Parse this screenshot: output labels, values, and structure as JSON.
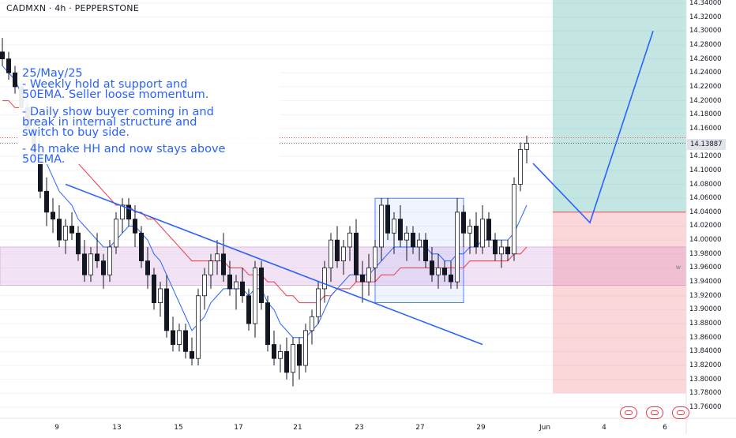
{
  "header": {
    "symbol_line": "CADMXN · 4h · PEPPERSTONE"
  },
  "annotation": {
    "lines": [
      "25/May/25",
      "- Weekly hold at support and",
      "50EMA. Seller loose momentum.",
      "- Daily show buyer coming in and",
      "break in internal structure and",
      "switch to buy side.",
      "- 4h make HH and now stays above",
      "50EMA."
    ]
  },
  "chart_data": {
    "type": "candlestick",
    "title": "CADMXN · 4h · PEPPERSTONE",
    "y_axis": {
      "ylim": [
        13.75,
        14.345
      ],
      "ticks": [
        14.34,
        14.32,
        14.3,
        14.28,
        14.26,
        14.24,
        14.22,
        14.2,
        14.18,
        14.16,
        14.14,
        14.12,
        14.1,
        14.08,
        14.06,
        14.04,
        14.02,
        14.0,
        13.98,
        13.96,
        13.94,
        13.92,
        13.9,
        13.88,
        13.86,
        13.84,
        13.82,
        13.8,
        13.78,
        13.76
      ],
      "tick_labels": [
        "14.34000",
        "14.32000",
        "14.30000",
        "14.28000",
        "14.26000",
        "14.24000",
        "14.22000",
        "14.20000",
        "14.18000",
        "14.16000",
        "14.14000",
        "14.12000",
        "14.10000",
        "14.08000",
        "14.06000",
        "14.04000",
        "14.02000",
        "14.00000",
        "13.98000",
        "13.96000",
        "13.94000",
        "13.92000",
        "13.90000",
        "13.88000",
        "13.86000",
        "13.84000",
        "13.82000",
        "13.80000",
        "13.78000",
        "13.76000"
      ],
      "current_price": 14.13887,
      "current_price_label": "14.13887"
    },
    "x_axis": {
      "tick_labels": [
        "9",
        "13",
        "15",
        "17",
        "21",
        "23",
        "27",
        "29",
        "Jun",
        "4",
        "6"
      ]
    },
    "candles": [
      [
        14.27,
        14.29,
        14.25,
        14.26
      ],
      [
        14.26,
        14.27,
        14.23,
        14.24
      ],
      [
        14.24,
        14.25,
        14.21,
        14.22
      ],
      [
        14.22,
        14.23,
        14.18,
        14.19
      ],
      [
        14.19,
        14.2,
        14.15,
        14.16
      ],
      [
        14.16,
        14.17,
        14.11,
        14.12
      ],
      [
        14.12,
        14.13,
        14.06,
        14.07
      ],
      [
        14.07,
        14.09,
        14.02,
        14.04
      ],
      [
        14.04,
        14.06,
        14.01,
        14.03
      ],
      [
        14.03,
        14.05,
        13.99,
        14.0
      ],
      [
        14.0,
        14.03,
        13.98,
        14.02
      ],
      [
        14.02,
        14.04,
        14.0,
        14.01
      ],
      [
        14.01,
        14.02,
        13.97,
        13.98
      ],
      [
        13.98,
        14.0,
        13.94,
        13.95
      ],
      [
        13.95,
        13.99,
        13.94,
        13.98
      ],
      [
        13.98,
        14.01,
        13.96,
        13.97
      ],
      [
        13.97,
        13.98,
        13.93,
        13.95
      ],
      [
        13.95,
        14.0,
        13.94,
        13.99
      ],
      [
        13.99,
        14.04,
        13.98,
        14.03
      ],
      [
        14.03,
        14.06,
        14.01,
        14.05
      ],
      [
        14.05,
        14.06,
        14.02,
        14.03
      ],
      [
        14.03,
        14.05,
        13.99,
        14.01
      ],
      [
        14.01,
        14.02,
        13.96,
        13.97
      ],
      [
        13.97,
        13.99,
        13.93,
        13.95
      ],
      [
        13.95,
        13.96,
        13.9,
        13.91
      ],
      [
        13.91,
        13.94,
        13.89,
        13.93
      ],
      [
        13.93,
        13.95,
        13.86,
        13.87
      ],
      [
        13.87,
        13.89,
        13.84,
        13.85
      ],
      [
        13.85,
        13.88,
        13.84,
        13.87
      ],
      [
        13.87,
        13.88,
        13.83,
        13.84
      ],
      [
        13.84,
        13.86,
        13.82,
        13.83
      ],
      [
        13.83,
        13.93,
        13.82,
        13.92
      ],
      [
        13.92,
        13.96,
        13.9,
        13.95
      ],
      [
        13.95,
        13.98,
        13.93,
        13.97
      ],
      [
        13.97,
        14.0,
        13.95,
        13.98
      ],
      [
        13.98,
        14.01,
        13.94,
        13.95
      ],
      [
        13.95,
        13.97,
        13.92,
        13.93
      ],
      [
        13.93,
        13.95,
        13.9,
        13.94
      ],
      [
        13.94,
        13.96,
        13.91,
        13.92
      ],
      [
        13.92,
        13.93,
        13.87,
        13.88
      ],
      [
        13.88,
        13.97,
        13.86,
        13.96
      ],
      [
        13.96,
        13.97,
        13.9,
        13.91
      ],
      [
        13.91,
        13.92,
        13.84,
        13.85
      ],
      [
        13.85,
        13.87,
        13.82,
        13.83
      ],
      [
        13.83,
        13.85,
        13.81,
        13.84
      ],
      [
        13.84,
        13.86,
        13.8,
        13.81
      ],
      [
        13.81,
        13.86,
        13.79,
        13.85
      ],
      [
        13.85,
        13.86,
        13.8,
        13.82
      ],
      [
        13.82,
        13.88,
        13.81,
        13.87
      ],
      [
        13.87,
        13.9,
        13.85,
        13.89
      ],
      [
        13.89,
        13.94,
        13.88,
        13.93
      ],
      [
        13.93,
        13.97,
        13.91,
        13.96
      ],
      [
        13.96,
        14.01,
        13.94,
        14.0
      ],
      [
        14.0,
        14.02,
        13.96,
        13.97
      ],
      [
        13.97,
        14.0,
        13.95,
        13.99
      ],
      [
        13.99,
        14.02,
        13.97,
        14.01
      ],
      [
        14.01,
        14.03,
        13.94,
        13.95
      ],
      [
        13.95,
        13.97,
        13.91,
        13.94
      ],
      [
        13.94,
        13.98,
        13.92,
        13.96
      ],
      [
        13.96,
        14.0,
        13.94,
        13.99
      ],
      [
        13.99,
        14.06,
        13.97,
        14.05
      ],
      [
        14.05,
        14.06,
        14.0,
        14.01
      ],
      [
        14.01,
        14.04,
        13.98,
        14.03
      ],
      [
        14.03,
        14.05,
        13.99,
        14.0
      ],
      [
        14.0,
        14.02,
        13.97,
        14.01
      ],
      [
        14.01,
        14.02,
        13.98,
        13.99
      ],
      [
        13.99,
        14.01,
        13.97,
        14.0
      ],
      [
        14.0,
        14.01,
        13.96,
        13.97
      ],
      [
        13.97,
        13.99,
        13.94,
        13.95
      ],
      [
        13.95,
        13.98,
        13.93,
        13.96
      ],
      [
        13.96,
        13.97,
        13.94,
        13.95
      ],
      [
        13.95,
        13.97,
        13.93,
        13.94
      ],
      [
        13.94,
        14.06,
        13.93,
        14.04
      ],
      [
        14.04,
        14.05,
        13.99,
        14.01
      ],
      [
        14.01,
        14.03,
        13.98,
        14.02
      ],
      [
        14.02,
        14.04,
        13.98,
        13.99
      ],
      [
        13.99,
        14.05,
        13.98,
        14.03
      ],
      [
        14.03,
        14.04,
        13.99,
        14.0
      ],
      [
        14.0,
        14.01,
        13.97,
        13.98
      ],
      [
        13.98,
        14.0,
        13.96,
        13.99
      ],
      [
        13.99,
        14.0,
        13.97,
        13.98
      ],
      [
        13.98,
        14.09,
        13.97,
        14.08
      ],
      [
        14.08,
        14.14,
        14.07,
        14.13
      ],
      [
        14.13,
        14.15,
        14.11,
        14.13887
      ]
    ],
    "ema_fast": {
      "color": "#2962ff",
      "values": [
        14.25,
        14.24,
        14.23,
        14.21,
        14.19,
        14.17,
        14.14,
        14.11,
        14.09,
        14.07,
        14.06,
        14.05,
        14.03,
        14.02,
        14.01,
        14.0,
        13.99,
        13.99,
        14.0,
        14.01,
        14.02,
        14.02,
        14.01,
        14.0,
        13.98,
        13.97,
        13.95,
        13.93,
        13.91,
        13.89,
        13.87,
        13.88,
        13.89,
        13.91,
        13.92,
        13.93,
        13.93,
        13.93,
        13.93,
        13.92,
        13.93,
        13.93,
        13.91,
        13.9,
        13.88,
        13.87,
        13.86,
        13.86,
        13.86,
        13.87,
        13.88,
        13.9,
        13.92,
        13.93,
        13.94,
        13.95,
        13.95,
        13.95,
        13.95,
        13.96,
        13.97,
        13.98,
        13.99,
        13.99,
        13.99,
        13.99,
        13.99,
        13.99,
        13.98,
        13.98,
        13.97,
        13.97,
        13.98,
        13.98,
        13.99,
        13.99,
        14.0,
        14.0,
        14.0,
        14.0,
        14.0,
        14.01,
        14.03,
        14.05
      ]
    },
    "ema_slow": {
      "color": "#f23645",
      "values": [
        14.2,
        14.2,
        14.19,
        14.19,
        14.18,
        14.18,
        14.17,
        14.16,
        14.15,
        14.14,
        14.13,
        14.12,
        14.11,
        14.1,
        14.09,
        14.08,
        14.07,
        14.06,
        14.05,
        14.05,
        14.05,
        14.04,
        14.04,
        14.03,
        14.03,
        14.02,
        14.01,
        14.0,
        13.99,
        13.98,
        13.97,
        13.97,
        13.97,
        13.97,
        13.97,
        13.97,
        13.96,
        13.96,
        13.96,
        13.95,
        13.95,
        13.95,
        13.94,
        13.94,
        13.93,
        13.92,
        13.92,
        13.91,
        13.91,
        13.91,
        13.91,
        13.92,
        13.92,
        13.93,
        13.93,
        13.93,
        13.94,
        13.94,
        13.94,
        13.94,
        13.95,
        13.95,
        13.95,
        13.96,
        13.96,
        13.96,
        13.96,
        13.96,
        13.96,
        13.96,
        13.96,
        13.96,
        13.96,
        13.96,
        13.97,
        13.97,
        13.97,
        13.97,
        13.97,
        13.97,
        13.97,
        13.98,
        13.98,
        13.99
      ]
    },
    "trendline": {
      "from": [
        10,
        14.08
      ],
      "to": [
        76,
        13.85
      ],
      "color": "#2962ff"
    },
    "support_zone": {
      "low": 13.935,
      "high": 13.99,
      "color": "#e1bee7"
    },
    "range_box": {
      "x_from": 59,
      "x_to": 73,
      "low": 13.91,
      "high": 14.06
    },
    "position": {
      "entry": 14.04,
      "target": 14.345,
      "stop": 13.78,
      "path": [
        [
          84,
          14.11
        ],
        [
          93,
          14.025
        ],
        [
          103,
          14.3
        ]
      ]
    },
    "prior_level": 14.147
  }
}
